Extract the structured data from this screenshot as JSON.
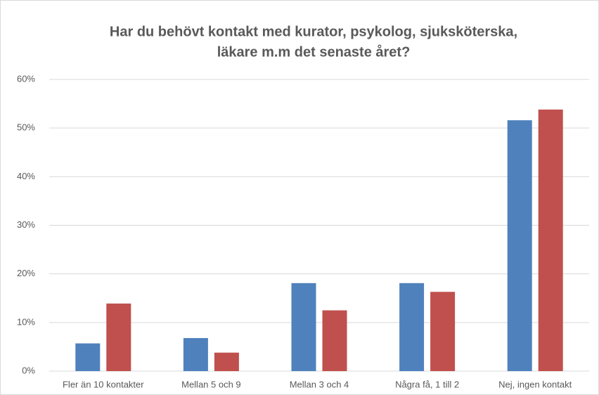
{
  "chart_data": {
    "type": "bar",
    "title": [
      "Har du behövt kontakt med kurator, psykolog, sjuksköterska,",
      "läkare m.m det senaste året?"
    ],
    "categories": [
      "Fler än 10 kontakter",
      "Mellan 5 och 9",
      "Mellan 3 och 4",
      "Några få, 1 till 2",
      "Nej, ingen kontakt"
    ],
    "series": [
      {
        "color": "#4f81bd",
        "values": [
          5.7,
          6.8,
          18.1,
          18.1,
          51.6
        ]
      },
      {
        "color": "#c0504d",
        "values": [
          13.9,
          3.8,
          12.5,
          16.3,
          53.8
        ]
      }
    ],
    "ylim": [
      0,
      60
    ],
    "yticks": [
      {
        "value": 0,
        "label": "0%"
      },
      {
        "value": 10,
        "label": "10%"
      },
      {
        "value": 20,
        "label": "20%"
      },
      {
        "value": 30,
        "label": "30%"
      },
      {
        "value": 40,
        "label": "40%"
      },
      {
        "value": 50,
        "label": "50%"
      },
      {
        "value": 60,
        "label": "60%"
      }
    ],
    "grid": true
  }
}
